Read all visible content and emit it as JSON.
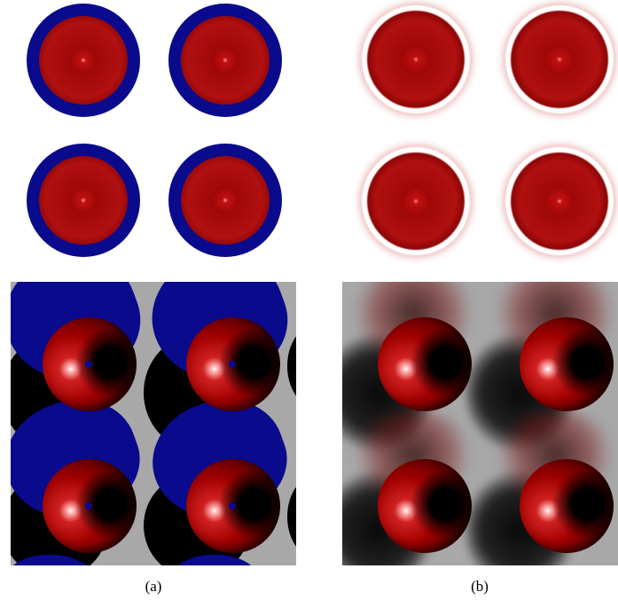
{
  "captions": {
    "a": "(a)",
    "b": "(b)"
  },
  "colors": {
    "background": "#ffffff",
    "blue": "#0a0a8c",
    "red": "#b01010",
    "gray": "#a8a8a8"
  }
}
